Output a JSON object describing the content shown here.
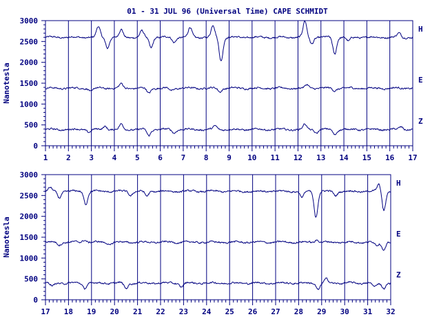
{
  "title": "01 - 31 JUL 96 (Universal Time) CAPE SCHMIDT",
  "chart_data": [
    {
      "type": "line",
      "ylabel": "Nanotesla",
      "xlim": [
        1,
        17
      ],
      "ylim": [
        0,
        3000
      ],
      "x_ticks": [
        1,
        2,
        3,
        4,
        5,
        6,
        7,
        8,
        9,
        10,
        11,
        12,
        13,
        14,
        15,
        16,
        17
      ],
      "y_ticks": [
        0,
        500,
        1000,
        1500,
        2000,
        2500,
        3000
      ],
      "grid": true,
      "series": [
        {
          "name": "H",
          "baseline": 2600,
          "events": [
            [
              3.3,
              250
            ],
            [
              3.7,
              -250
            ],
            [
              4.3,
              180
            ],
            [
              5.2,
              150
            ],
            [
              5.6,
              -250
            ],
            [
              6.6,
              -120
            ],
            [
              7.3,
              230
            ],
            [
              8.3,
              280
            ],
            [
              8.65,
              -560
            ],
            [
              12.3,
              380
            ],
            [
              12.6,
              -150
            ],
            [
              13.6,
              -400
            ],
            [
              14.2,
              -100
            ],
            [
              16.4,
              100
            ]
          ]
        },
        {
          "name": "E",
          "baseline": 1380,
          "events": [
            [
              3.0,
              -80
            ],
            [
              4.3,
              100
            ],
            [
              5.5,
              -120
            ],
            [
              6.5,
              -60
            ],
            [
              8.6,
              -80
            ],
            [
              12.4,
              80
            ],
            [
              13.6,
              -60
            ]
          ]
        },
        {
          "name": "Z",
          "baseline": 390,
          "events": [
            [
              2.9,
              -60
            ],
            [
              3.6,
              80
            ],
            [
              4.3,
              120
            ],
            [
              5.5,
              -150
            ],
            [
              6.6,
              -80
            ],
            [
              8.4,
              80
            ],
            [
              12.3,
              120
            ],
            [
              12.8,
              -80
            ],
            [
              13.6,
              -120
            ],
            [
              16.5,
              60
            ]
          ]
        }
      ]
    },
    {
      "type": "line",
      "ylabel": "Nanotesla",
      "xlim": [
        17,
        32
      ],
      "ylim": [
        0,
        3000
      ],
      "x_ticks": [
        17,
        18,
        19,
        20,
        21,
        22,
        23,
        24,
        25,
        26,
        27,
        28,
        29,
        30,
        31,
        32
      ],
      "y_ticks": [
        0,
        500,
        1000,
        1500,
        2000,
        2500,
        3000
      ],
      "grid": true,
      "series": [
        {
          "name": "H",
          "baseline": 2600,
          "events": [
            [
              17.2,
              80
            ],
            [
              17.6,
              -150
            ],
            [
              18.75,
              -300
            ],
            [
              20.7,
              -100
            ],
            [
              21.4,
              -120
            ],
            [
              28.15,
              -150
            ],
            [
              28.75,
              -620
            ],
            [
              29.6,
              -100
            ],
            [
              31.5,
              180
            ],
            [
              31.7,
              -450
            ]
          ]
        },
        {
          "name": "E",
          "baseline": 1380,
          "events": [
            [
              17.6,
              -60
            ],
            [
              18.7,
              60
            ],
            [
              19.8,
              -60
            ],
            [
              28.8,
              60
            ],
            [
              31.4,
              -80
            ],
            [
              31.7,
              -180
            ]
          ]
        },
        {
          "name": "Z",
          "baseline": 400,
          "events": [
            [
              17.3,
              -80
            ],
            [
              18.7,
              -120
            ],
            [
              20.5,
              -130
            ],
            [
              22.9,
              -90
            ],
            [
              28.85,
              -150
            ],
            [
              29.2,
              90
            ],
            [
              31.3,
              -100
            ],
            [
              31.7,
              -120
            ]
          ]
        }
      ]
    }
  ]
}
